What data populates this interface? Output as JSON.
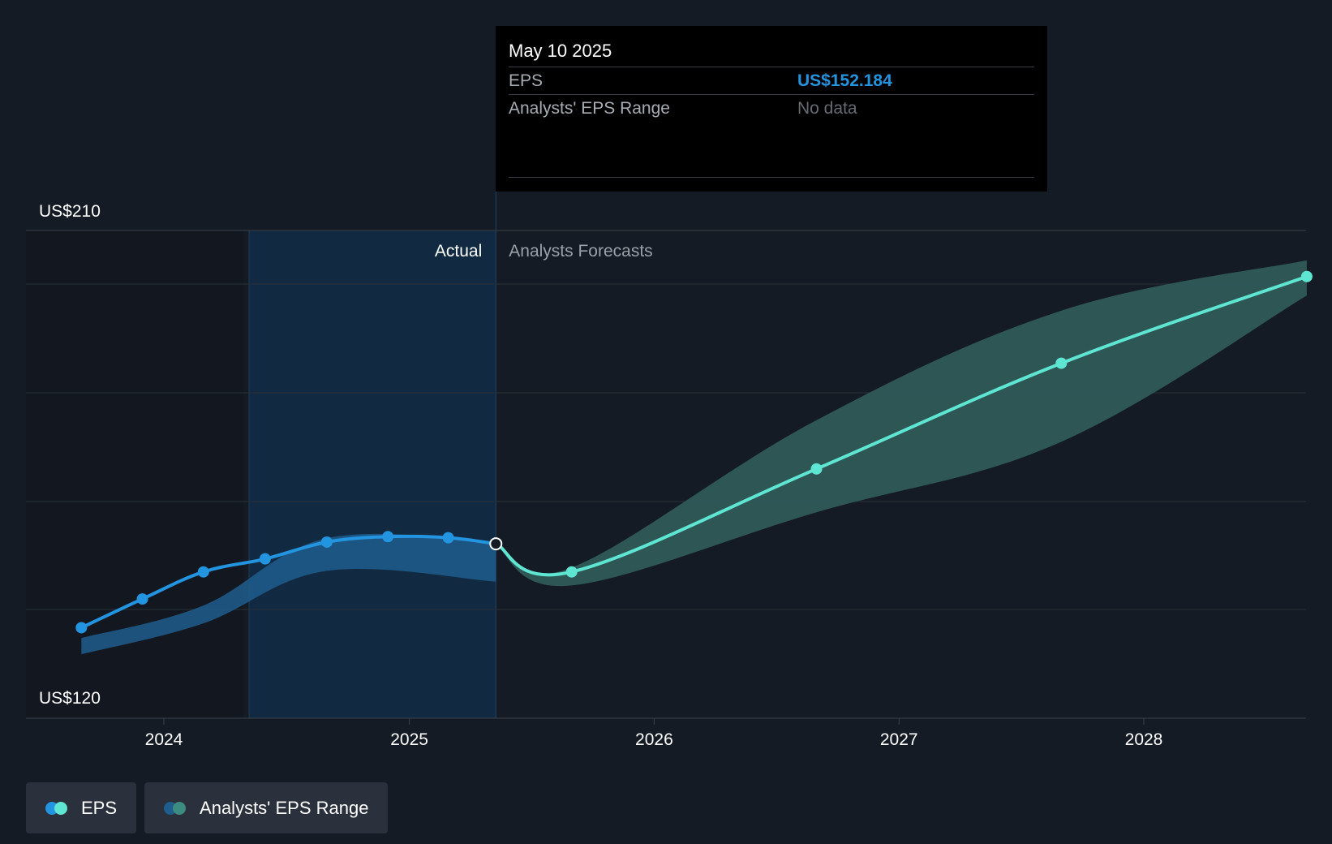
{
  "tooltip": {
    "date": "May 10 2025",
    "eps_label": "EPS",
    "eps_value": "US$152.184",
    "range_label": "Analysts' EPS Range",
    "range_value": "No data"
  },
  "section_labels": {
    "actual": "Actual",
    "forecast": "Analysts Forecasts"
  },
  "legend": [
    {
      "label": "EPS",
      "colors": [
        "#2394df",
        "#5ee6d2"
      ]
    },
    {
      "label": "Analysts' EPS Range",
      "colors": [
        "#1f5d8c",
        "#3d8c82"
      ]
    }
  ],
  "colors": {
    "actual_line": "#2394df",
    "forecast_line": "#5ee6d2",
    "actual_band": "#1f5d8c",
    "forecast_band": "#2f5a58",
    "actual_region": "#112a42",
    "background": "#151b24"
  },
  "chart_data": {
    "type": "line",
    "y_axis": {
      "min": 120,
      "max": 210,
      "labels": [
        "US$210",
        "US$120"
      ]
    },
    "x_axis": {
      "ticks": [
        "2024",
        "2025",
        "2026",
        "2027",
        "2028"
      ]
    },
    "grid": true,
    "highlight_date": "2025-05-10",
    "series": [
      {
        "name": "EPS",
        "segment": "actual",
        "points": [
          {
            "date": "2023-08-31",
            "value": 136.7
          },
          {
            "date": "2023-11-30",
            "value": 142.0
          },
          {
            "date": "2024-02-29",
            "value": 147.0
          },
          {
            "date": "2024-05-31",
            "value": 149.4
          },
          {
            "date": "2024-08-31",
            "value": 152.5
          },
          {
            "date": "2024-11-30",
            "value": 153.5
          },
          {
            "date": "2025-02-28",
            "value": 153.3
          },
          {
            "date": "2025-05-10",
            "value": 152.184
          }
        ]
      },
      {
        "name": "EPS",
        "segment": "forecast",
        "points": [
          {
            "date": "2025-05-10",
            "value": 152.184
          },
          {
            "date": "2025-08-31",
            "value": 147.0
          },
          {
            "date": "2026-08-31",
            "value": 166.0
          },
          {
            "date": "2027-08-31",
            "value": 185.5
          },
          {
            "date": "2028-08-31",
            "value": 201.5
          }
        ]
      }
    ],
    "ranges": [
      {
        "name": "Analysts' EPS Range",
        "segment": "actual",
        "points": [
          {
            "date": "2023-08-31",
            "low": 131.8,
            "high": 134.8
          },
          {
            "date": "2024-02-29",
            "low": 137.5,
            "high": 140.8
          },
          {
            "date": "2024-08-31",
            "low": 147.2,
            "high": 153.2
          },
          {
            "date": "2025-05-10",
            "low": 145.2,
            "high": 152.5
          }
        ]
      },
      {
        "name": "Analysts' EPS Range",
        "segment": "forecast",
        "points": [
          {
            "date": "2025-05-10",
            "low": 152.0,
            "high": 152.3
          },
          {
            "date": "2025-08-31",
            "low": 144.5,
            "high": 147.8
          },
          {
            "date": "2026-08-31",
            "low": 158.0,
            "high": 175.0
          },
          {
            "date": "2027-08-31",
            "low": 171.0,
            "high": 195.2
          },
          {
            "date": "2028-08-31",
            "low": 198.0,
            "high": 204.5
          }
        ]
      }
    ]
  }
}
